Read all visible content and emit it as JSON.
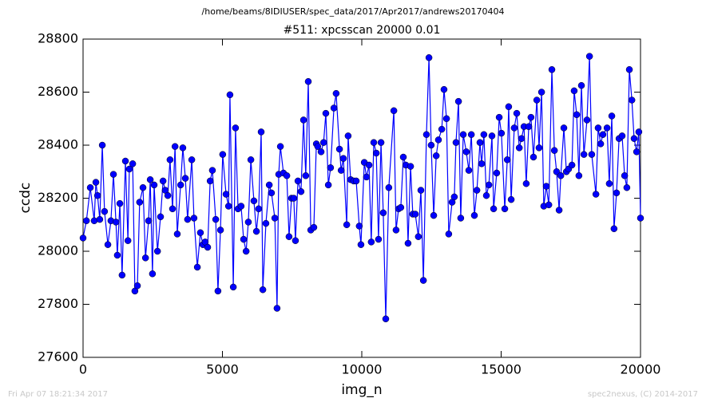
{
  "chart_data": {
    "type": "line",
    "suptitle": "/home/beams/8IDIUSER/spec_data/2017/Apr2017/andrews20170404",
    "title": "#511: xpcsscan 20000 0.01",
    "xlabel": "img_n",
    "ylabel": "ccdc",
    "footer_left": "Fri Apr 07 18:21:34 2017",
    "footer_right": "spec2nexus, (C) 2014-2017",
    "xlim": [
      0,
      20000
    ],
    "xticks": [
      0,
      5000,
      10000,
      15000,
      20000
    ],
    "ylim": [
      27600,
      28800
    ],
    "yticks": [
      27600,
      27800,
      28000,
      28200,
      28400,
      28600,
      28800
    ],
    "x": [
      0,
      120,
      260,
      400,
      460,
      520,
      600,
      690,
      770,
      890,
      1000,
      1090,
      1180,
      1230,
      1320,
      1400,
      1520,
      1610,
      1660,
      1780,
      1860,
      1950,
      2030,
      2150,
      2240,
      2350,
      2410,
      2490,
      2550,
      2670,
      2780,
      2870,
      2950,
      3040,
      3120,
      3210,
      3300,
      3380,
      3500,
      3580,
      3670,
      3750,
      3900,
      3980,
      4100,
      4210,
      4300,
      4380,
      4470,
      4560,
      4640,
      4760,
      4840,
      4930,
      5010,
      5130,
      5220,
      5270,
      5390,
      5470,
      5560,
      5670,
      5760,
      5850,
      5930,
      6020,
      6130,
      6220,
      6300,
      6390,
      6450,
      6560,
      6680,
      6760,
      6880,
      6960,
      7020,
      7080,
      7190,
      7310,
      7390,
      7480,
      7560,
      7620,
      7710,
      7820,
      7910,
      7990,
      8080,
      8170,
      8280,
      8370,
      8420,
      8540,
      8630,
      8710,
      8800,
      8880,
      9000,
      9080,
      9200,
      9260,
      9340,
      9460,
      9510,
      9600,
      9710,
      9800,
      9910,
      9970,
      10090,
      10170,
      10260,
      10340,
      10430,
      10520,
      10600,
      10690,
      10770,
      10860,
      10970,
      11150,
      11230,
      11320,
      11400,
      11490,
      11580,
      11660,
      11750,
      11830,
      11920,
      12030,
      12120,
      12210,
      12320,
      12410,
      12490,
      12580,
      12670,
      12750,
      12870,
      12950,
      13040,
      13120,
      13240,
      13320,
      13380,
      13470,
      13550,
      13640,
      13750,
      13840,
      13930,
      14040,
      14130,
      14240,
      14300,
      14380,
      14470,
      14560,
      14670,
      14730,
      14840,
      14930,
      15010,
      15130,
      15220,
      15270,
      15360,
      15470,
      15560,
      15650,
      15730,
      15820,
      15900,
      15990,
      16070,
      16160,
      16280,
      16360,
      16450,
      16530,
      16620,
      16710,
      16820,
      16910,
      16990,
      17080,
      17140,
      17250,
      17340,
      17420,
      17540,
      17620,
      17710,
      17790,
      17880,
      17970,
      18080,
      18170,
      18250,
      18400,
      18480,
      18570,
      18650,
      18800,
      18880,
      18970,
      19050,
      19140,
      19230,
      19340,
      19430,
      19510,
      19600,
      19690,
      19770,
      19860,
      19940,
      20000
    ],
    "series": [
      {
        "name": "ccdc",
        "color": "#0000ff",
        "values": [
          28050,
          28115,
          28240,
          28115,
          28260,
          28210,
          28120,
          28400,
          28150,
          28025,
          28115,
          28290,
          28110,
          27985,
          28180,
          27910,
          28340,
          28040,
          28310,
          28330,
          27850,
          27870,
          28185,
          28240,
          27975,
          28115,
          28270,
          27915,
          28250,
          28000,
          28130,
          28265,
          28230,
          28210,
          28345,
          28160,
          28395,
          28065,
          28250,
          28390,
          28275,
          28120,
          28345,
          28125,
          27940,
          28070,
          28025,
          28035,
          28015,
          28265,
          28305,
          28120,
          27850,
          28080,
          28365,
          28215,
          28170,
          28590,
          27865,
          28465,
          28160,
          28170,
          28045,
          28000,
          28110,
          28345,
          28190,
          28075,
          28160,
          28450,
          27855,
          28105,
          28250,
          28220,
          28125,
          27785,
          28290,
          28395,
          28295,
          28285,
          28055,
          28200,
          28200,
          28040,
          28265,
          28225,
          28495,
          28285,
          28640,
          28080,
          28090,
          28405,
          28395,
          28375,
          28410,
          28520,
          28250,
          28315,
          28540,
          28595,
          28385,
          28305,
          28350,
          28100,
          28435,
          28270,
          28265,
          28265,
          28095,
          28025,
          28335,
          28280,
          28325,
          28035,
          28410,
          28370,
          28045,
          28410,
          28145,
          27745,
          28240,
          28530,
          28080,
          28160,
          28165,
          28355,
          28325,
          28030,
          28320,
          28140,
          28140,
          28055,
          28230,
          27890,
          28440,
          28730,
          28400,
          28135,
          28360,
          28420,
          28460,
          28610,
          28500,
          28065,
          28185,
          28205,
          28410,
          28565,
          28125,
          28440,
          28375,
          28305,
          28440,
          28135,
          28230,
          28410,
          28330,
          28440,
          28210,
          28250,
          28435,
          28160,
          28295,
          28505,
          28445,
          28160,
          28345,
          28545,
          28195,
          28465,
          28520,
          28390,
          28425,
          28470,
          28255,
          28470,
          28505,
          28355,
          28570,
          28390,
          28600,
          28170,
          28245,
          28175,
          28685,
          28380,
          28300,
          28155,
          28285,
          28465,
          28300,
          28310,
          28325,
          28605,
          28515,
          28285,
          28625,
          28365,
          28495,
          28735,
          28365,
          28215,
          28465,
          28405,
          28440,
          28465,
          28255,
          28510,
          28085,
          28220,
          28425,
          28435,
          28285,
          28240,
          28685,
          28570,
          28425,
          28375,
          28450,
          28125
        ]
      }
    ]
  }
}
